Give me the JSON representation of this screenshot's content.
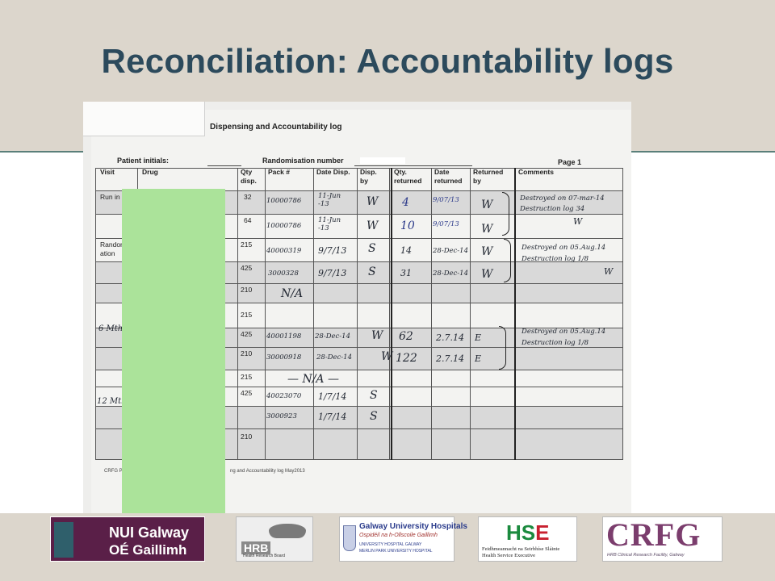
{
  "slide": {
    "title": "Reconciliation: Accountability logs"
  },
  "photo": {
    "log_title": "Dispensing and Accountability log",
    "patient_label": "Patient initials:",
    "randomisation_label": "Randomisation number",
    "page_label": "Page 1",
    "columns": {
      "visit": "Visit",
      "drug": "Drug",
      "qty_disp": "Qty disp.",
      "pack": "Pack #",
      "date_disp": "Date Disp.",
      "disp_by": "Disp. by",
      "qty_returned": "Qty. returned",
      "date_returned": "Date returned",
      "returned_by": "Returned by",
      "comments": "Comments"
    },
    "visits": {
      "run_in": "Run in",
      "randomisation": "Randomis ation",
      "six_month": "6   Mth",
      "twelve_month": "12   Mth"
    },
    "qty_disp": [
      "32",
      "64",
      "215",
      "425",
      "210",
      "215",
      "425",
      "210",
      "215",
      "425",
      "210"
    ],
    "handwriting": {
      "packs": [
        "10000786",
        "10000786",
        "40000319",
        "3000328",
        "40001198",
        "30000918",
        "40023070",
        "3000923"
      ],
      "dates_disp": [
        "11-Jun -13",
        "11-Jun -13",
        "9/7/13",
        "9/7/13",
        "28-Dec-14",
        "28-Dec-14",
        "1/7/14",
        "1/7/14"
      ],
      "disp_by": [
        "W",
        "W",
        "S",
        "S",
        "W",
        "W",
        "S",
        "S"
      ],
      "na_1": "N/A",
      "na_2": "— N/A —",
      "qty_returned": [
        "4",
        "10",
        "14",
        "31",
        "62",
        "122"
      ],
      "dates_returned": [
        "9/07/13",
        "9/07/13",
        "28-Dec-14",
        "28-Dec-14",
        "2.7.14",
        "2.7.14"
      ],
      "returned_by": [
        "W",
        "W",
        "W",
        "W",
        "E",
        "E"
      ],
      "comments": [
        "Destroyed on 07-mar-14",
        "Destruction log 34",
        "W",
        "Destroyed on 05.Aug.14",
        "Destruction log 1/8",
        "W",
        "Destroyed on 05.Aug.14",
        "Destruction log 1/8"
      ]
    },
    "footer_left": "CRFG Pha",
    "footer_right": "ng and Accountability log May2013"
  },
  "logos": {
    "nui_line1": "NUI Galway",
    "nui_line2": "OÉ Gaillimh",
    "hrb_word": "HRB",
    "hrb_sub": "Health Research Board",
    "guh_line1": "Galway University Hospitals",
    "guh_line2": "Ospidéil na h-Ollscoile Gaillimh",
    "guh_line3": "UNIVERSITY HOSPITAL GALWAY",
    "guh_line4": "MERLIN PARK UNIVERSITY HOSPITAL",
    "hse_line1": "Feidhmeannacht na Seirbhíse Sláinte",
    "hse_line2": "Health Service Executive",
    "crfg_word": "CRFG",
    "crfg_sub": "HRB Clinical Research Facility, Galway"
  }
}
